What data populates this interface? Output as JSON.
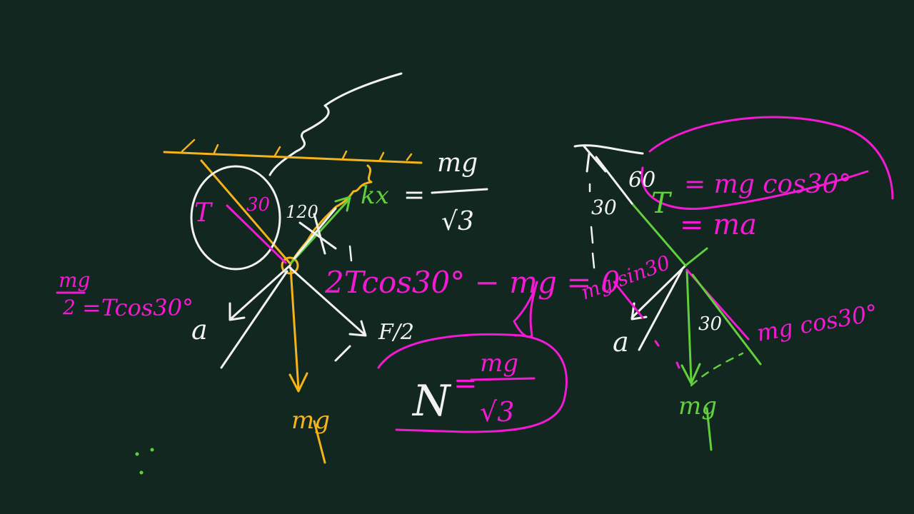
{
  "colors": {
    "background": "#11271f",
    "white": "#f2f2f2",
    "yellow": "#f5b31c",
    "magenta": "#f21ad2",
    "green": "#62cf3d"
  },
  "left_figure": {
    "tension_label": "T",
    "angle_30": "30",
    "angle_120": "120",
    "spring_label": "kx",
    "spring_eq": "=",
    "spring_rhs_num": "mg",
    "spring_rhs_den": "√3",
    "weight_label": "mg",
    "accel_label": "a",
    "normal_frac_label": "F/2",
    "left_eq_num": "mg",
    "left_eq_den": "2",
    "left_eq_rhs": "=Tcos30°",
    "mid_eq": "2Tcos30° − mg = 0",
    "normal_label": "N",
    "normal_eq": "=",
    "normal_num": "mg",
    "normal_den": "√3"
  },
  "right_figure": {
    "angle_60": "60",
    "angle_30_top": "30",
    "tension_label": "T",
    "eq_top": "= mg cos30°",
    "eq_second": "= ma",
    "force_sin_label": "mg sin30",
    "force_cos_label": "mg cos30°",
    "angle_30_bottom": "30",
    "accel_label": "a",
    "weight_label": "mg"
  }
}
